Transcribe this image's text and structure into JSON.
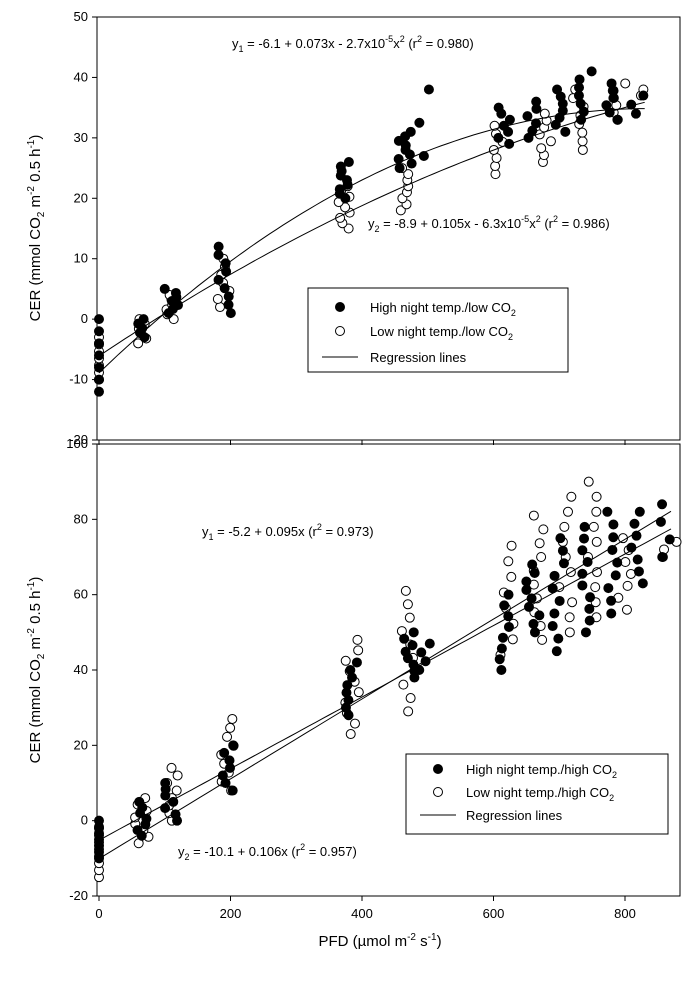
{
  "xaxis": {
    "ticks": [
      "0",
      "200",
      "400",
      "600",
      "800"
    ],
    "title_main": "PFD (µmol m",
    "title_sup1": "-2",
    "title_mid": " s",
    "title_sup2": "-1",
    "title_end": ")"
  },
  "chart_data": [
    {
      "type": "scatter",
      "xlim": [
        0,
        880
      ],
      "ylim": [
        -20,
        50
      ],
      "y_ticks": [
        "-20",
        "-10",
        "0",
        "10",
        "20",
        "30",
        "40",
        "50"
      ],
      "ylabel": {
        "a": "CER (mmol CO",
        "s2": "2",
        "b": " m",
        "sup1": "-2",
        "c": " 0.5 h",
        "sup2": "-1",
        "d": ")"
      },
      "equations": [
        {
          "pre": "y",
          "sub": "1",
          "mid": " = -6.1 + 0.073x - 2.7x10",
          "sup": "-5",
          "mid2": "x",
          "sup2": "2",
          "post": " (r",
          "sup3": "2",
          "end": " = 0.980)"
        },
        {
          "pre": "y",
          "sub": "2",
          "mid": " = -8.9 + 0.105x - 6.3x10",
          "sup": "-5",
          "mid2": "x",
          "sup2": "2",
          "post": " (r",
          "sup3": "2",
          "end": " = 0.986)"
        }
      ],
      "legend": [
        {
          "text": "High night temp./low CO",
          "sub": "2"
        },
        {
          "text": "Low night temp./low CO",
          "sub": "2"
        },
        {
          "text": "Regression lines",
          "sub": ""
        }
      ],
      "regression": [
        {
          "a": -6.1,
          "b": 0.073,
          "c": -2.7e-05,
          "xmax": 830
        },
        {
          "a": -8.9,
          "b": 0.105,
          "c": -6.3e-05,
          "xmax": 830
        }
      ],
      "clusters_filled": [
        {
          "x": 0,
          "ymin": -12,
          "ymax": 0,
          "n": 7
        },
        {
          "x": 65,
          "ymin": -3,
          "ymax": 0,
          "n": 5
        },
        {
          "x": 110,
          "ymin": 1,
          "ymax": 5,
          "n": 7
        },
        {
          "x": 190,
          "ymin": 1,
          "ymax": 12,
          "n": 9
        },
        {
          "x": 375,
          "ymin": 20,
          "ymax": 26,
          "n": 9
        },
        {
          "x": 465,
          "ymin": 25,
          "ymax": 31,
          "n": 9
        },
        {
          "x": 495,
          "ymin": 27,
          "ymax": 38,
          "n": 3
        },
        {
          "x": 615,
          "ymin": 29,
          "ymax": 35,
          "n": 7
        },
        {
          "x": 660,
          "ymin": 30,
          "ymax": 36,
          "n": 6
        },
        {
          "x": 700,
          "ymin": 31,
          "ymax": 38,
          "n": 7
        },
        {
          "x": 740,
          "ymin": 33,
          "ymax": 41,
          "n": 7
        },
        {
          "x": 780,
          "ymin": 33,
          "ymax": 39,
          "n": 6
        },
        {
          "x": 820,
          "ymin": 34,
          "ymax": 37,
          "n": 3
        }
      ],
      "clusters_open": [
        {
          "x": 0,
          "ymin": -10,
          "ymax": -3,
          "n": 7
        },
        {
          "x": 65,
          "ymin": -4,
          "ymax": 0,
          "n": 6
        },
        {
          "x": 110,
          "ymin": 0,
          "ymax": 4,
          "n": 6
        },
        {
          "x": 190,
          "ymin": 2,
          "ymax": 10,
          "n": 7
        },
        {
          "x": 375,
          "ymin": 15,
          "ymax": 22,
          "n": 9
        },
        {
          "x": 465,
          "ymin": 18,
          "ymax": 25,
          "n": 8
        },
        {
          "x": 610,
          "ymin": 24,
          "ymax": 32,
          "n": 7
        },
        {
          "x": 680,
          "ymin": 26,
          "ymax": 34,
          "n": 8
        },
        {
          "x": 730,
          "ymin": 28,
          "ymax": 38,
          "n": 8
        },
        {
          "x": 790,
          "ymin": 33,
          "ymax": 39,
          "n": 6
        },
        {
          "x": 825,
          "ymin": 37,
          "ymax": 38,
          "n": 2
        }
      ]
    },
    {
      "type": "scatter",
      "xlim": [
        0,
        880
      ],
      "ylim": [
        -20,
        100
      ],
      "y_ticks": [
        "-20",
        "0",
        "20",
        "40",
        "60",
        "80",
        "100"
      ],
      "ylabel": {
        "a": "CER (mmol CO",
        "s2": "2",
        "b": " m",
        "sup1": "-2",
        "c": " 0.5 h",
        "sup2": "-1",
        "d": ")"
      },
      "equations": [
        {
          "pre": "y",
          "sub": "1",
          "mid": " = -5.2 + 0.095x (r",
          "sup": "2",
          "mid2": "",
          "sup2": "",
          "post": "",
          "sup3": "",
          "end": " = 0.973)"
        },
        {
          "pre": "y",
          "sub": "2",
          "mid": " = -10.1 + 0.106x (r",
          "sup": "2",
          "mid2": "",
          "sup2": "",
          "post": "",
          "sup3": "",
          "end": " = 0.957)"
        }
      ],
      "legend": [
        {
          "text": "High night temp./high CO",
          "sub": "2"
        },
        {
          "text": "Low night temp./high CO",
          "sub": "2"
        },
        {
          "text": "Regression lines",
          "sub": ""
        }
      ],
      "regression": [
        {
          "a": -5.2,
          "b": 0.095,
          "c": 0,
          "xmax": 870
        },
        {
          "a": -10.1,
          "b": 0.106,
          "c": 0,
          "xmax": 870
        }
      ],
      "clusters_filled": [
        {
          "x": 0,
          "ymin": -10,
          "ymax": 0,
          "n": 7
        },
        {
          "x": 65,
          "ymin": -4,
          "ymax": 5,
          "n": 7
        },
        {
          "x": 110,
          "ymin": 0,
          "ymax": 10,
          "n": 7
        },
        {
          "x": 195,
          "ymin": 8,
          "ymax": 20,
          "n": 7
        },
        {
          "x": 385,
          "ymin": 28,
          "ymax": 42,
          "n": 8
        },
        {
          "x": 470,
          "ymin": 38,
          "ymax": 50,
          "n": 8
        },
        {
          "x": 495,
          "ymin": 40,
          "ymax": 47,
          "n": 4
        },
        {
          "x": 620,
          "ymin": 40,
          "ymax": 60,
          "n": 8
        },
        {
          "x": 660,
          "ymin": 50,
          "ymax": 68,
          "n": 9
        },
        {
          "x": 700,
          "ymin": 45,
          "ymax": 75,
          "n": 10
        },
        {
          "x": 740,
          "ymin": 50,
          "ymax": 78,
          "n": 10
        },
        {
          "x": 780,
          "ymin": 55,
          "ymax": 82,
          "n": 9
        },
        {
          "x": 820,
          "ymin": 63,
          "ymax": 82,
          "n": 7
        },
        {
          "x": 865,
          "ymin": 70,
          "ymax": 84,
          "n": 4
        }
      ],
      "clusters_open": [
        {
          "x": 0,
          "ymin": -15,
          "ymax": -2,
          "n": 8
        },
        {
          "x": 65,
          "ymin": -6,
          "ymax": 6,
          "n": 8
        },
        {
          "x": 110,
          "ymin": 0,
          "ymax": 14,
          "n": 8
        },
        {
          "x": 195,
          "ymin": 8,
          "ymax": 27,
          "n": 9
        },
        {
          "x": 385,
          "ymin": 23,
          "ymax": 48,
          "n": 10
        },
        {
          "x": 470,
          "ymin": 29,
          "ymax": 61,
          "n": 10
        },
        {
          "x": 620,
          "ymin": 44,
          "ymax": 73,
          "n": 8
        },
        {
          "x": 670,
          "ymin": 48,
          "ymax": 81,
          "n": 10
        },
        {
          "x": 710,
          "ymin": 50,
          "ymax": 86,
          "n": 10
        },
        {
          "x": 750,
          "ymin": 54,
          "ymax": 90,
          "n": 10
        },
        {
          "x": 800,
          "ymin": 56,
          "ymax": 75,
          "n": 7
        },
        {
          "x": 868,
          "ymin": 70,
          "ymax": 74,
          "n": 3
        }
      ]
    }
  ]
}
